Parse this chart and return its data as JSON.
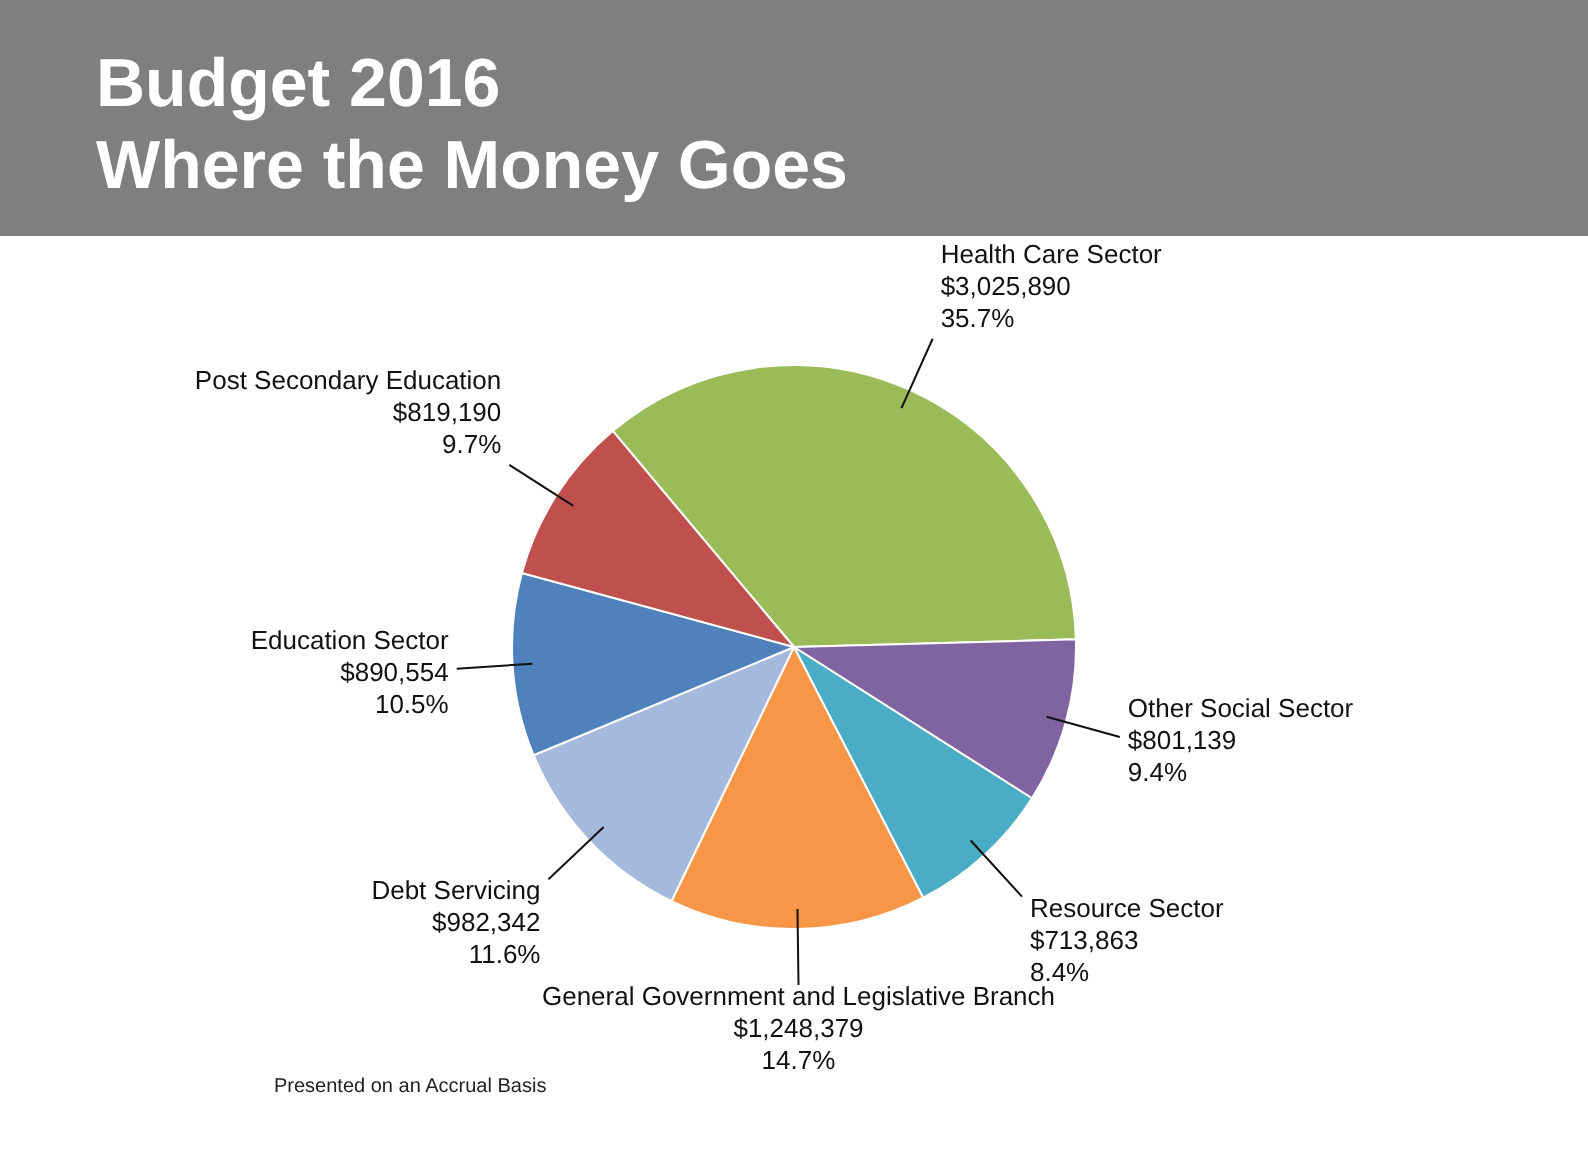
{
  "chart_data": {
    "type": "pie",
    "title": "Budget 2016",
    "subtitle": "Where the Money Goes",
    "categories": [
      "Health Care Sector",
      "Other Social Sector",
      "Resource Sector",
      "General Government and Legislative Branch",
      "Debt Servicing",
      "Education Sector",
      "Post Secondary Education"
    ],
    "values": [
      3025890,
      801139,
      713863,
      1248379,
      982342,
      890554,
      819190
    ],
    "value_labels": [
      "$3,025,890\n35.7%",
      "$801,139\n9.4%",
      "$713,863\n8.4%",
      "$1,248,379\n14.7%",
      "$982,342\n11.6%",
      "$890,554\n10.5%",
      "$819,190\n9.7%"
    ],
    "colors": [
      "#9bbb59",
      "#8064a2",
      "#4bacc6",
      "#f79646",
      "#a5b9dc",
      "#4f81bd",
      "#c0504d"
    ],
    "legend": false,
    "annotations": [
      "Presented on an Accrual Basis"
    ]
  }
}
